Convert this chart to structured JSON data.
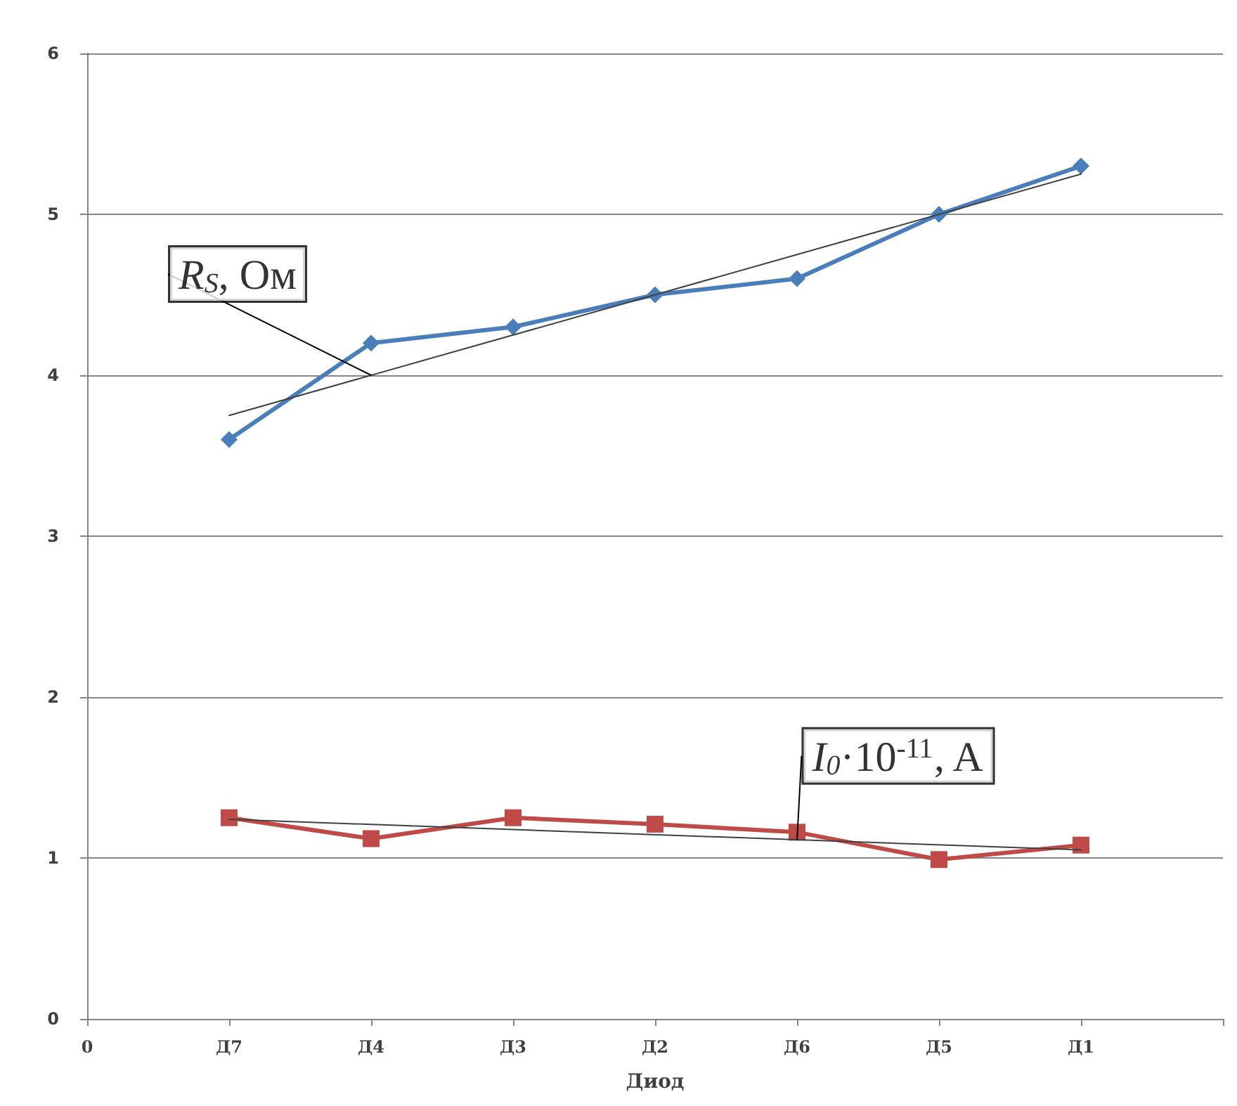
{
  "chart_data": {
    "type": "line",
    "xlabel": "Диод",
    "categories": [
      "0",
      "Д7",
      "Д4",
      "Д3",
      "Д2",
      "Д6",
      "Д5",
      "Д1",
      null
    ],
    "ylim": [
      0,
      6
    ],
    "yticks": [
      0,
      1,
      2,
      3,
      4,
      5,
      6
    ],
    "grid": "y",
    "line_style": "solid",
    "series": [
      {
        "color": "#4a7ebb",
        "marker": "diamond",
        "x": [
          "Д7",
          "Д4",
          "Д3",
          "Д2",
          "Д6",
          "Д5",
          "Д1"
        ],
        "values": [
          3.6,
          4.2,
          4.3,
          4.5,
          4.6,
          5.0,
          5.3
        ]
      },
      {
        "color": "#be4b48",
        "marker": "square",
        "x": [
          "Д7",
          "Д4",
          "Д3",
          "Д2",
          "Д6",
          "Д5",
          "Д1"
        ],
        "values": [
          1.25,
          1.12,
          1.25,
          1.21,
          1.16,
          0.99,
          1.08
        ]
      },
      {
        "type": "line",
        "color": "#404040",
        "marker": "none",
        "x": [
          "Д7",
          "Д1"
        ],
        "values": [
          3.75,
          5.25
        ]
      },
      {
        "type": "line",
        "color": "#404040",
        "marker": "none",
        "x": [
          "Д7",
          "Д1"
        ],
        "values": [
          1.24,
          1.05
        ]
      }
    ],
    "annotations": [
      {
        "text": "R$_{S}$, Ом",
        "x": "Д4",
        "y": 4.0
      },
      {
        "text": "I$_{0}$·10$^{-11}$, A",
        "x": "Д6",
        "y": 1.11
      }
    ]
  }
}
